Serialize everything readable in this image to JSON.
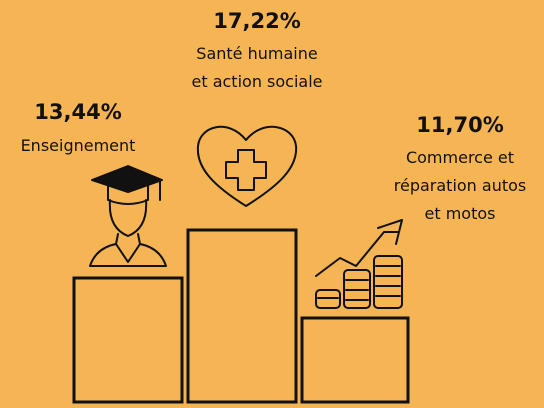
{
  "items": [
    {
      "value": "13,44%",
      "label": [
        "Enseignement"
      ]
    },
    {
      "value": "17,22%",
      "label": [
        "Santé humaine",
        "et action sociale"
      ]
    },
    {
      "value": "11,70%",
      "label": [
        "Commerce et",
        "réparation autos",
        "et motos"
      ]
    }
  ]
}
